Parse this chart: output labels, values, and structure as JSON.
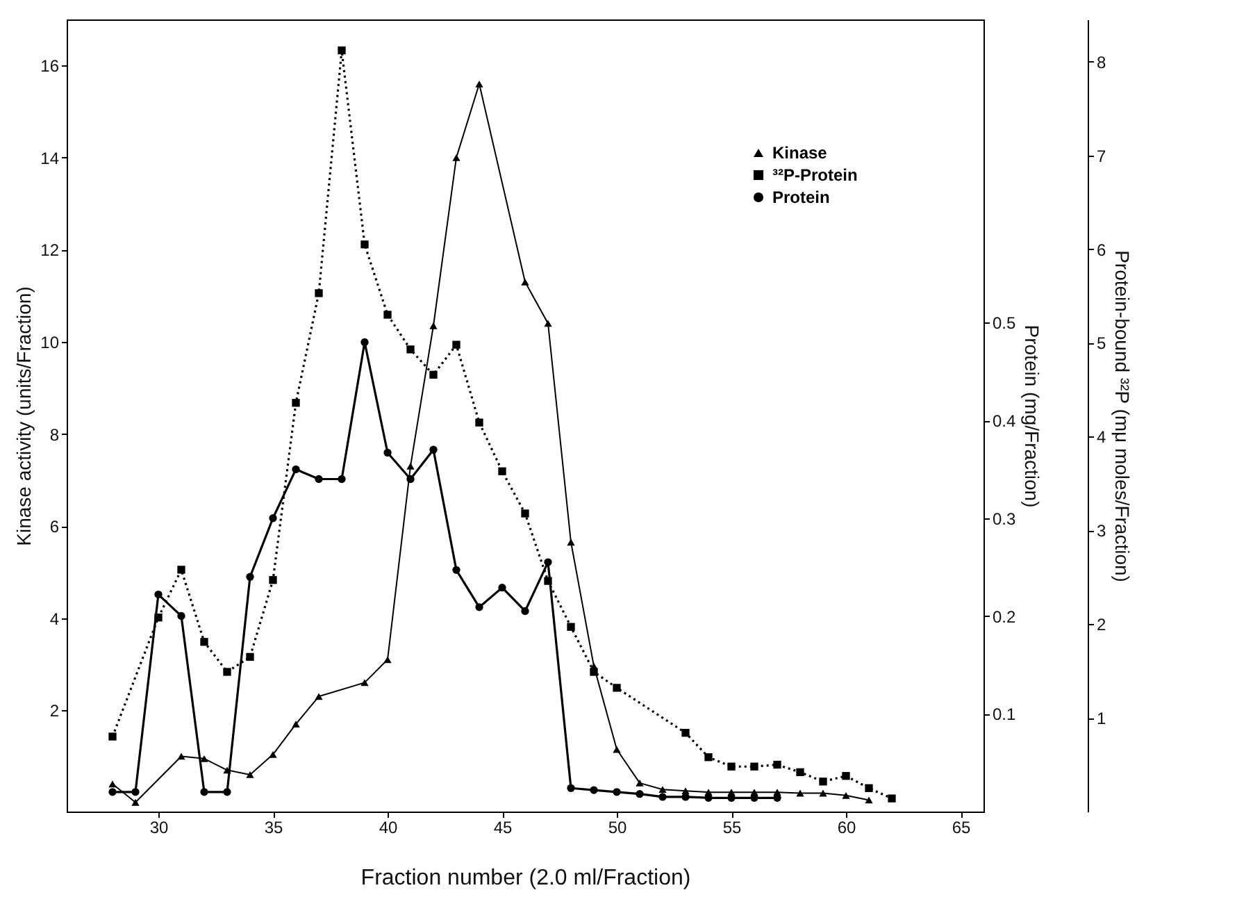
{
  "chart_data": {
    "type": "line",
    "xlabel": "Fraction number (2.0 ml/Fraction)",
    "ylabel": "Kinase activity (units/Fraction)",
    "y2label": "Protein (mg/Fraction)",
    "y3label": "Protein-bound ³²P (mμ moles/Fraction)",
    "xlim": [
      26,
      66
    ],
    "xticks": [
      30,
      35,
      40,
      45,
      50,
      55,
      60,
      65
    ],
    "ylim": [
      -0.2,
      17
    ],
    "yticks": [
      2,
      4,
      6,
      8,
      10,
      12,
      14,
      16
    ],
    "y2lim": [
      0,
      0.81
    ],
    "y2ticks": [
      0.1,
      0.2,
      0.3,
      0.4,
      0.5
    ],
    "y3lim": [
      0,
      8.45
    ],
    "y3ticks": [
      1,
      2,
      3,
      4,
      5,
      6,
      7,
      8
    ],
    "legend": "top right",
    "grid": false,
    "series": [
      {
        "name": "Kinase",
        "color": "#000000",
        "axis": "y",
        "marker": "triangle",
        "line_style": "solid",
        "x": [
          28,
          29,
          31,
          32,
          33,
          34,
          35,
          36,
          37,
          39,
          40,
          41,
          42,
          43,
          44,
          46,
          47,
          48,
          49,
          50,
          51,
          52,
          53,
          54,
          55,
          56,
          57,
          58,
          59,
          60,
          61
        ],
        "values": [
          0.4,
          0,
          1,
          0.95,
          0.7,
          0.6,
          1.04,
          1.7,
          2.3,
          2.6,
          3.1,
          7.3,
          10.35,
          14,
          15.6,
          11.3,
          10.4,
          5.65,
          2.96,
          1.15,
          0.42,
          0.28,
          0.25,
          0.22,
          0.22,
          0.22,
          0.22,
          0.2,
          0.2,
          0.15,
          0.05
        ]
      },
      {
        "name": "³²P-Protein",
        "color": "#000000",
        "axis": "y3",
        "marker": "square",
        "line_style": "dotted",
        "x": [
          28,
          30,
          31,
          32,
          33,
          34,
          35,
          36,
          37,
          38,
          39,
          40,
          41,
          42,
          43,
          44,
          45,
          46,
          47,
          48,
          49,
          50,
          53,
          54,
          55,
          56,
          57,
          58,
          59,
          60,
          61,
          62
        ],
        "values": [
          0.8,
          2.07,
          2.58,
          1.81,
          1.49,
          1.65,
          2.47,
          4.36,
          5.53,
          8.12,
          6.05,
          5.3,
          4.93,
          4.66,
          4.98,
          4.15,
          3.63,
          3.18,
          2.46,
          1.97,
          1.49,
          1.32,
          0.84,
          0.58,
          0.48,
          0.48,
          0.5,
          0.42,
          0.32,
          0.38,
          0.25,
          0.14
        ]
      },
      {
        "name": "Protein",
        "color": "#000000",
        "axis": "y2",
        "marker": "circle",
        "line_style": "solid",
        "x": [
          28,
          29,
          30,
          31,
          32,
          33,
          34,
          35,
          36,
          37,
          38,
          39,
          40,
          41,
          42,
          43,
          44,
          45,
          46,
          47,
          48,
          49,
          50,
          51,
          52,
          53,
          54,
          55,
          56,
          57
        ],
        "values": [
          0.02,
          0.02,
          0.222,
          0.2,
          0.02,
          0.02,
          0.24,
          0.3,
          0.35,
          0.34,
          0.34,
          0.48,
          0.367,
          0.34,
          0.37,
          0.247,
          0.209,
          0.229,
          0.205,
          0.255,
          0.024,
          0.022,
          0.02,
          0.018,
          0.015,
          0.015,
          0.014,
          0.014,
          0.014,
          0.014
        ]
      }
    ]
  }
}
